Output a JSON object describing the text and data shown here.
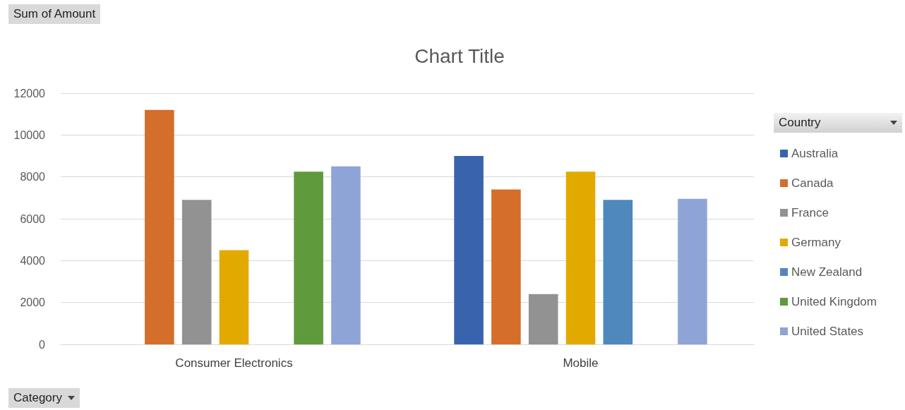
{
  "chart_data": {
    "type": "bar",
    "title": "Chart Title",
    "annotations": [
      "Sum of Amount"
    ],
    "xlabel": "Category",
    "legend_title": "Country",
    "categories": [
      "Consumer Electronics",
      "Mobile"
    ],
    "series": [
      {
        "name": "Australia",
        "color": "#3a63ad",
        "values": [
          null,
          9000
        ]
      },
      {
        "name": "Canada",
        "color": "#d46e2a",
        "values": [
          11200,
          7400
        ]
      },
      {
        "name": "France",
        "color": "#929292",
        "values": [
          6900,
          2400
        ]
      },
      {
        "name": "Germany",
        "color": "#e2aa00",
        "values": [
          4500,
          8250
        ]
      },
      {
        "name": "New Zealand",
        "color": "#4e88bd",
        "values": [
          null,
          6900
        ]
      },
      {
        "name": "United Kingdom",
        "color": "#5f9a3c",
        "values": [
          8250,
          null
        ]
      },
      {
        "name": "United States",
        "color": "#8fa4d6",
        "values": [
          8500,
          6950
        ]
      }
    ],
    "ylim": [
      0,
      12000
    ],
    "yticks": [
      0,
      2000,
      4000,
      6000,
      8000,
      10000,
      12000
    ],
    "grid": "y",
    "legend": "right"
  }
}
